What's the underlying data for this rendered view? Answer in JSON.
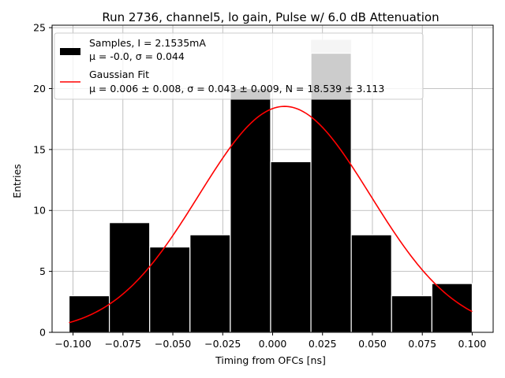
{
  "chart_data": {
    "type": "bar",
    "title": "Run 2736, channel5, lo gain, Pulse w/ 6.0 dB Attenuation",
    "xlabel": "Timing from OFCs [ns]",
    "ylabel": "Entries",
    "xlim": [
      -0.1105,
      0.1105
    ],
    "ylim": [
      0,
      25.2
    ],
    "xticks": [
      -0.1,
      -0.075,
      -0.05,
      -0.025,
      0.0,
      0.025,
      0.05,
      0.075,
      0.1
    ],
    "xtick_labels": [
      "−0.100",
      "−0.075",
      "−0.050",
      "−0.025",
      "0.000",
      "0.025",
      "0.050",
      "0.075",
      "0.100"
    ],
    "yticks": [
      0,
      5,
      10,
      15,
      20,
      25
    ],
    "ytick_labels": [
      "0",
      "5",
      "10",
      "15",
      "20",
      "25"
    ],
    "grid": true,
    "histogram": {
      "name": "Samples, I = 2.1535mA",
      "stats": "μ = -0.0, σ = 0.044",
      "bin_edges": [
        -0.102,
        -0.0818,
        -0.0616,
        -0.0414,
        -0.0212,
        -0.001,
        0.0192,
        0.0394,
        0.0596,
        0.0798,
        0.1
      ],
      "counts": [
        3,
        9,
        7,
        8,
        20,
        14,
        24,
        8,
        3,
        4
      ],
      "color": "#000000",
      "background_color": "#cccccc"
    },
    "fit": {
      "name": "Gaussian Fit",
      "params_text": "μ = 0.006 ± 0.008, σ = 0.043 ± 0.009, N = 18.539 ± 3.113",
      "mu": 0.006,
      "sigma": 0.043,
      "amplitude": 18.539,
      "x_range": [
        -0.102,
        0.1
      ],
      "color": "#ff0000"
    },
    "legend_position": "upper-left"
  }
}
